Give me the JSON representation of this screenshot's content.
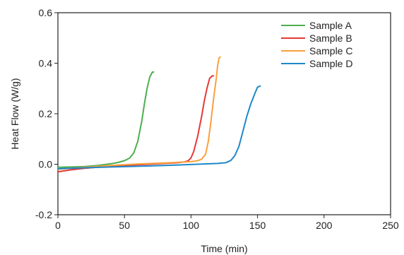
{
  "chart_data": {
    "type": "line",
    "xlabel": "Time (min)",
    "ylabel": "Heat Flow (W/g)",
    "xlim": [
      0,
      250
    ],
    "ylim": [
      -0.2,
      0.6
    ],
    "xticks": [
      0,
      50,
      100,
      150,
      200,
      250
    ],
    "yticks": [
      -0.2,
      0.0,
      0.2,
      0.4,
      0.6
    ],
    "xtick_labels": [
      "0",
      "50",
      "100",
      "150",
      "200",
      "250"
    ],
    "ytick_labels": [
      "-0.2",
      "0.0",
      "0.2",
      "0.4",
      "0.6"
    ],
    "grid": false,
    "legend_position": "top-right",
    "series": [
      {
        "name": "Sample A",
        "color": "#4caf50",
        "points": [
          [
            0,
            -0.012
          ],
          [
            10,
            -0.011
          ],
          [
            20,
            -0.009
          ],
          [
            30,
            -0.005
          ],
          [
            40,
            0.002
          ],
          [
            45,
            0.007
          ],
          [
            50,
            0.014
          ],
          [
            54,
            0.025
          ],
          [
            57,
            0.045
          ],
          [
            60,
            0.09
          ],
          [
            63,
            0.17
          ],
          [
            65,
            0.24
          ],
          [
            67,
            0.3
          ],
          [
            69,
            0.345
          ],
          [
            71,
            0.365
          ],
          [
            72,
            0.365
          ]
        ]
      },
      {
        "name": "Sample B",
        "color": "#e53935",
        "points": [
          [
            0,
            -0.03
          ],
          [
            10,
            -0.022
          ],
          [
            20,
            -0.016
          ],
          [
            40,
            -0.008
          ],
          [
            60,
            -0.002
          ],
          [
            80,
            0.003
          ],
          [
            90,
            0.006
          ],
          [
            95,
            0.009
          ],
          [
            98,
            0.014
          ],
          [
            100,
            0.025
          ],
          [
            102,
            0.05
          ],
          [
            105,
            0.11
          ],
          [
            108,
            0.19
          ],
          [
            110,
            0.25
          ],
          [
            112,
            0.3
          ],
          [
            114,
            0.34
          ],
          [
            116,
            0.35
          ],
          [
            117,
            0.35
          ]
        ]
      },
      {
        "name": "Sample C",
        "color": "#f9a03f",
        "points": [
          [
            0,
            -0.02
          ],
          [
            20,
            -0.012
          ],
          [
            40,
            -0.005
          ],
          [
            60,
            0.001
          ],
          [
            80,
            0.005
          ],
          [
            100,
            0.01
          ],
          [
            105,
            0.014
          ],
          [
            108,
            0.02
          ],
          [
            111,
            0.04
          ],
          [
            113,
            0.09
          ],
          [
            115,
            0.17
          ],
          [
            117,
            0.26
          ],
          [
            119,
            0.34
          ],
          [
            120,
            0.39
          ],
          [
            121,
            0.42
          ],
          [
            122,
            0.425
          ]
        ]
      },
      {
        "name": "Sample D",
        "color": "#1e88c8",
        "points": [
          [
            0,
            -0.018
          ],
          [
            20,
            -0.014
          ],
          [
            40,
            -0.011
          ],
          [
            60,
            -0.008
          ],
          [
            80,
            -0.005
          ],
          [
            100,
            -0.001
          ],
          [
            120,
            0.003
          ],
          [
            126,
            0.006
          ],
          [
            130,
            0.015
          ],
          [
            133,
            0.035
          ],
          [
            136,
            0.07
          ],
          [
            139,
            0.13
          ],
          [
            142,
            0.19
          ],
          [
            145,
            0.24
          ],
          [
            148,
            0.28
          ],
          [
            150,
            0.305
          ],
          [
            152,
            0.31
          ]
        ]
      }
    ]
  }
}
